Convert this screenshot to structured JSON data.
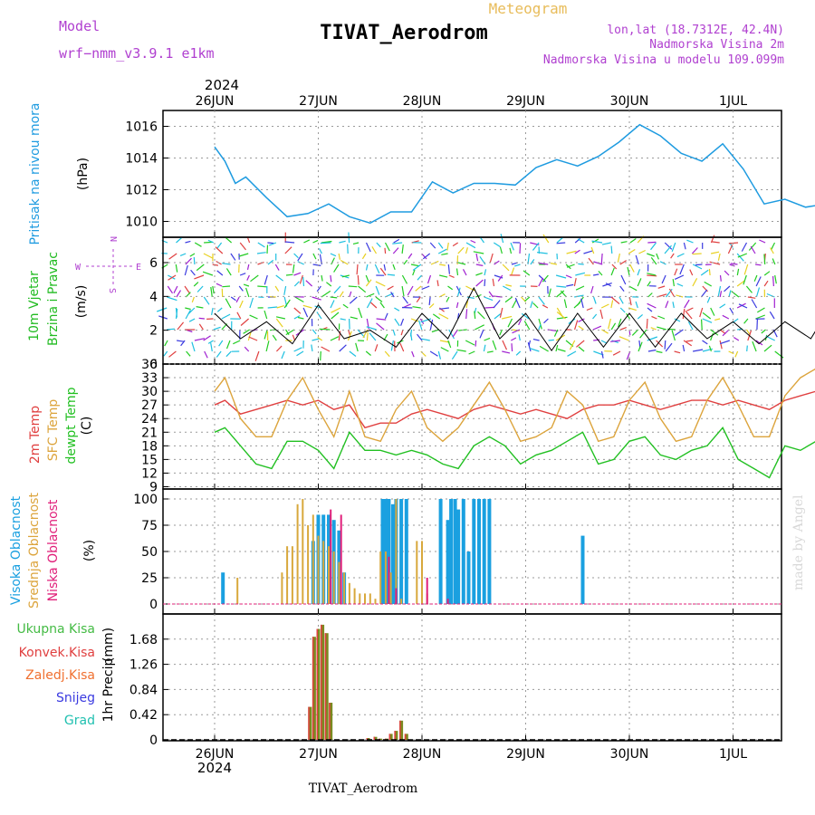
{
  "header": {
    "model_label": "Model",
    "model_name": "wrf−nmm_v3.9.1  e1km",
    "title": "TIVAT_Aerodrom",
    "meteogram_label": "Meteogram",
    "lonlat": "lon,lat (18.7312E, 42.4N)",
    "elevation": "Nadmorska Visina 2m",
    "model_elevation": "Nadmorska Visina u modelu 109.099m",
    "year": "2024",
    "credit": "made by Angel",
    "footer_station": "TIVAT_Aerodrom"
  },
  "colors": {
    "pressure": "#1e9be0",
    "wind_label": "#22bb22",
    "temp2m": "#e04040",
    "sfc": "#dca43c",
    "dewpt": "#22c022",
    "high_cloud": "#1aa0e0",
    "mid_cloud": "#d8a83c",
    "low_cloud": "#e0207a",
    "total_rain": "#44bb44",
    "conv_rain": "#e04040",
    "frozen": "#f07030",
    "snow": "#3a3ae0",
    "graupel": "#20c0b0",
    "compass": "#b040d0"
  },
  "chart_data": [
    {
      "type": "line",
      "panel": "pressure",
      "ylabel": "Pritisak na nivou mora",
      "unit": "(hPa)",
      "x_ticks": [
        "26JUN",
        "27JUN",
        "28JUN",
        "29JUN",
        "30JUN",
        "1JUL"
      ],
      "ylim": [
        1009,
        1017
      ],
      "yticks": [
        1010,
        1012,
        1014,
        1016
      ],
      "grid": true,
      "x": [
        0.0,
        0.1,
        0.2,
        0.3,
        0.5,
        0.7,
        0.9,
        1.1,
        1.3,
        1.5,
        1.7,
        1.9,
        2.1,
        2.3,
        2.5,
        2.7,
        2.9,
        3.1,
        3.3,
        3.5,
        3.7,
        3.9,
        4.1,
        4.3,
        4.5,
        4.7,
        4.9,
        5.1,
        5.3,
        5.5,
        5.7,
        5.9
      ],
      "values": [
        1014.7,
        1013.8,
        1012.4,
        1012.8,
        1011.5,
        1010.3,
        1010.5,
        1011.1,
        1010.3,
        1009.9,
        1010.6,
        1010.6,
        1012.5,
        1011.8,
        1012.4,
        1012.4,
        1012.3,
        1013.4,
        1013.9,
        1013.5,
        1014.1,
        1015.0,
        1016.1,
        1015.4,
        1014.3,
        1013.8,
        1014.9,
        1013.3,
        1011.1,
        1011.4,
        1010.9,
        1011.1
      ]
    },
    {
      "type": "line",
      "panel": "wind",
      "ylabel": "10m Vjetar",
      "ylabel2": "Brzina i Pravac",
      "unit": "(m/s)",
      "compass": [
        "N",
        "W",
        "E",
        "S"
      ],
      "ylim": [
        0,
        7.5
      ],
      "yticks": [
        0,
        2,
        4,
        6
      ],
      "grid": true,
      "x": [
        0.0,
        0.25,
        0.5,
        0.75,
        1.0,
        1.25,
        1.5,
        1.75,
        2.0,
        2.25,
        2.5,
        2.75,
        3.0,
        3.25,
        3.5,
        3.75,
        4.0,
        4.25,
        4.5,
        4.75,
        5.0,
        5.25,
        5.5,
        5.75,
        5.9
      ],
      "values": [
        3.0,
        1.5,
        2.5,
        1.2,
        3.5,
        1.5,
        2.0,
        1.0,
        3.0,
        1.5,
        4.5,
        1.5,
        3.0,
        0.8,
        3.0,
        1.0,
        3.0,
        1.0,
        3.0,
        1.5,
        2.5,
        1.2,
        2.5,
        1.5,
        3.0
      ]
    },
    {
      "type": "line",
      "panel": "temperature",
      "ylabel": "2m Temp",
      "ylabel2": "SFC Temp",
      "ylabel3": "dewpt Temp",
      "unit": "(C)",
      "ylim": [
        8.5,
        36
      ],
      "yticks": [
        9,
        12,
        15,
        18,
        21,
        24,
        27,
        30,
        33,
        36
      ],
      "grid": true,
      "x": [
        0.0,
        0.1,
        0.25,
        0.4,
        0.55,
        0.7,
        0.85,
        1.0,
        1.15,
        1.3,
        1.45,
        1.6,
        1.75,
        1.9,
        2.05,
        2.2,
        2.35,
        2.5,
        2.65,
        2.8,
        2.95,
        3.1,
        3.25,
        3.4,
        3.55,
        3.7,
        3.85,
        4.0,
        4.15,
        4.3,
        4.45,
        4.6,
        4.75,
        4.9,
        5.05,
        5.2,
        5.35,
        5.5,
        5.65,
        5.8,
        5.9
      ],
      "series": [
        {
          "name": "2m Temp",
          "values": [
            27,
            28,
            25,
            26,
            27,
            28,
            27,
            28,
            26,
            27,
            22,
            23,
            23,
            25,
            26,
            25,
            24,
            26,
            27,
            26,
            25,
            26,
            25,
            24,
            26,
            27,
            27,
            28,
            27,
            26,
            27,
            28,
            28,
            27,
            28,
            27,
            26,
            28,
            29,
            30,
            30
          ]
        },
        {
          "name": "SFC Temp",
          "values": [
            30,
            33,
            24,
            20,
            20,
            28,
            33,
            26,
            20,
            30,
            20,
            19,
            26,
            30,
            22,
            19,
            22,
            27,
            32,
            26,
            19,
            20,
            22,
            30,
            27,
            19,
            20,
            28,
            32,
            24,
            19,
            20,
            28,
            33,
            27,
            20,
            20,
            29,
            33,
            35,
            34
          ]
        },
        {
          "name": "dewpt Temp",
          "values": [
            21,
            22,
            18,
            14,
            13,
            19,
            19,
            17,
            13,
            21,
            17,
            17,
            16,
            17,
            16,
            14,
            13,
            18,
            20,
            18,
            14,
            16,
            17,
            19,
            21,
            14,
            15,
            19,
            20,
            16,
            15,
            17,
            18,
            22,
            15,
            13,
            11,
            18,
            17,
            19,
            18
          ]
        }
      ]
    },
    {
      "type": "bar",
      "panel": "clouds",
      "ylabel": "Visoka Oblacnost",
      "ylabel2": "Srednja Oblacnost",
      "ylabel3": "Niska Oblacnost",
      "unit": "(%)",
      "ylim": [
        0,
        100
      ],
      "yticks": [
        0,
        25,
        50,
        75,
        100
      ],
      "grid": true,
      "series": [
        {
          "name": "Visoka Oblacnost",
          "x": [
            0.08,
            0.95,
            1.0,
            1.05,
            1.1,
            1.15,
            1.2,
            1.25,
            1.62,
            1.65,
            1.68,
            1.72,
            1.75,
            1.8,
            1.85,
            2.18,
            2.25,
            2.28,
            2.32,
            2.35,
            2.4,
            2.45,
            2.5,
            2.55,
            2.6,
            2.65,
            3.55
          ],
          "values": [
            30,
            60,
            85,
            85,
            85,
            80,
            70,
            30,
            100,
            100,
            100,
            95,
            100,
            100,
            100,
            100,
            80,
            100,
            100,
            90,
            100,
            50,
            100,
            100,
            100,
            100,
            65
          ]
        },
        {
          "name": "Srednja Oblacnost",
          "x": [
            0.22,
            0.65,
            0.7,
            0.75,
            0.8,
            0.85,
            0.9,
            0.95,
            1.0,
            1.05,
            1.1,
            1.15,
            1.2,
            1.25,
            1.3,
            1.35,
            1.4,
            1.45,
            1.5,
            1.55,
            1.6,
            1.65,
            1.7,
            1.75,
            1.8,
            1.95,
            2.0,
            2.05
          ],
          "values": [
            25,
            30,
            55,
            55,
            95,
            100,
            75,
            85,
            65,
            60,
            55,
            50,
            40,
            30,
            20,
            15,
            10,
            10,
            10,
            5,
            50,
            50,
            30,
            100,
            5,
            60,
            60,
            10
          ]
        },
        {
          "name": "Niska Oblacnost",
          "x": [
            1.12,
            1.22,
            1.68,
            1.75,
            2.05,
            2.25
          ],
          "values": [
            90,
            85,
            45,
            15,
            25,
            5
          ]
        }
      ]
    },
    {
      "type": "bar",
      "panel": "precip",
      "ylabel": "1hr Precip",
      "unit": "(mm)",
      "legend": [
        "Ukupna Kisa",
        "Konvek.Kisa",
        "Zaledj.Kisa",
        "Snijeg",
        "Grad"
      ],
      "legend_position": "left",
      "ylim": [
        0,
        2.1
      ],
      "yticks": [
        "0",
        "0.42",
        "0.84",
        "1.26",
        "1.68"
      ],
      "x_ticks": [
        "26JUN",
        "27JUN",
        "28JUN",
        "29JUN",
        "30JUN",
        "1JUL"
      ],
      "grid": true,
      "x": [
        0.92,
        0.96,
        1.0,
        1.04,
        1.08,
        1.12,
        1.48,
        1.55,
        1.6,
        1.66,
        1.7,
        1.75,
        1.8,
        1.85
      ],
      "values": [
        0.55,
        1.72,
        1.85,
        1.92,
        1.78,
        0.62,
        0.03,
        0.05,
        0.02,
        0.02,
        0.1,
        0.15,
        0.32,
        0.1
      ]
    }
  ]
}
